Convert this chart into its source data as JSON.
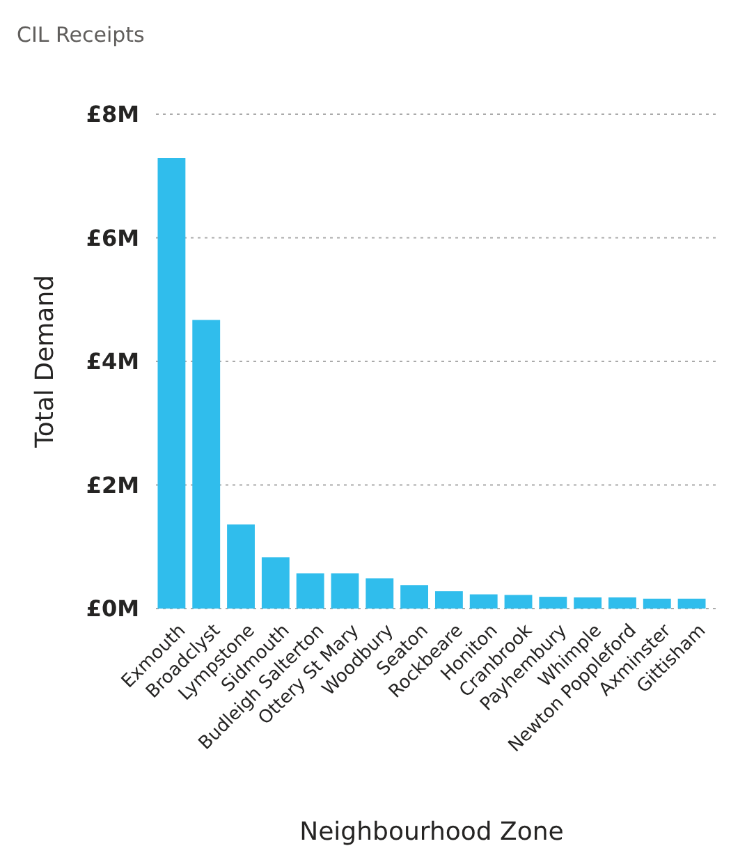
{
  "chart_data": {
    "type": "bar",
    "title": "CIL Receipts",
    "xlabel": "Neighbourhood Zone",
    "ylabel": "Total Demand",
    "categories": [
      "Exmouth",
      "Broadclyst",
      "Lympstone",
      "Sidmouth",
      "Budleigh Salterton",
      "Ottery St Mary",
      "Woodbury",
      "Seaton",
      "Rockbeare",
      "Honiton",
      "Cranbrook",
      "Payhembury",
      "Whimple",
      "Newton Poppleford",
      "Axminster",
      "Gittisham"
    ],
    "values": [
      7.29,
      4.67,
      1.36,
      0.83,
      0.57,
      0.57,
      0.49,
      0.38,
      0.28,
      0.23,
      0.22,
      0.19,
      0.18,
      0.18,
      0.16,
      0.16
    ],
    "color": "#30bdec",
    "ylim": [
      0,
      8
    ],
    "yticks": [
      {
        "value": 0,
        "label": "£0M"
      },
      {
        "value": 2,
        "label": "£2M"
      },
      {
        "value": 4,
        "label": "£4M"
      },
      {
        "value": 6,
        "label": "£6M"
      },
      {
        "value": 8,
        "label": "£8M"
      }
    ],
    "grid": "y"
  }
}
